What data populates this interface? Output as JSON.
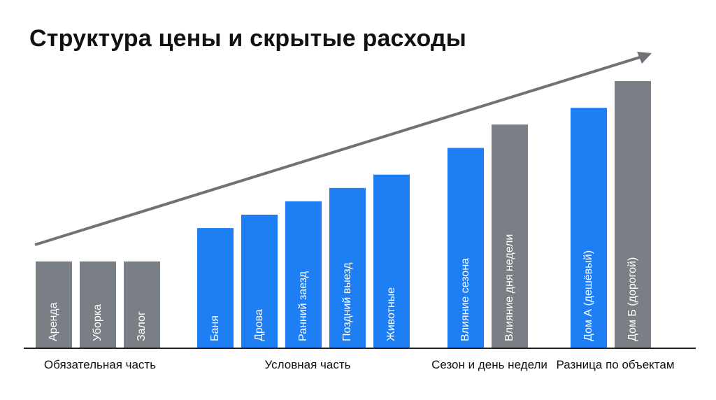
{
  "title": "Структура цены и скрытые расходы",
  "chart_data": {
    "type": "bar",
    "title": "Структура цены и скрытые расходы",
    "categories": [
      "Аренда",
      "Уборка",
      "Залог",
      "Баня",
      "Дрова",
      "Ранний заезд",
      "Поздний выезд",
      "Животные",
      "Влияние сезона",
      "Влияние дня недели",
      "Дом А (дешёвый)",
      "Дом Б (дорогой)"
    ],
    "values": [
      26,
      26,
      26,
      36,
      40,
      44,
      48,
      52,
      60,
      67,
      72,
      80
    ],
    "colors": [
      "#7a7f85",
      "#7a7f85",
      "#7a7f85",
      "#1e7ff5",
      "#1e7ff5",
      "#1e7ff5",
      "#1e7ff5",
      "#1e7ff5",
      "#1e7ff5",
      "#7a7f85",
      "#1e7ff5",
      "#7a7f85"
    ],
    "groups": [
      {
        "label": "Обязательная часть",
        "category_indices": [
          0,
          1,
          2
        ]
      },
      {
        "label": "Условная часть",
        "category_indices": [
          3,
          4,
          5,
          6,
          7
        ]
      },
      {
        "label": "Сезон и день недели",
        "category_indices": [
          8,
          9
        ]
      },
      {
        "label": "Разница по объектам",
        "category_indices": [
          10,
          11
        ]
      }
    ],
    "ylim": [
      0,
      80
    ],
    "xlabel": "",
    "ylabel": "",
    "grid": false,
    "trend_arrow": true
  }
}
